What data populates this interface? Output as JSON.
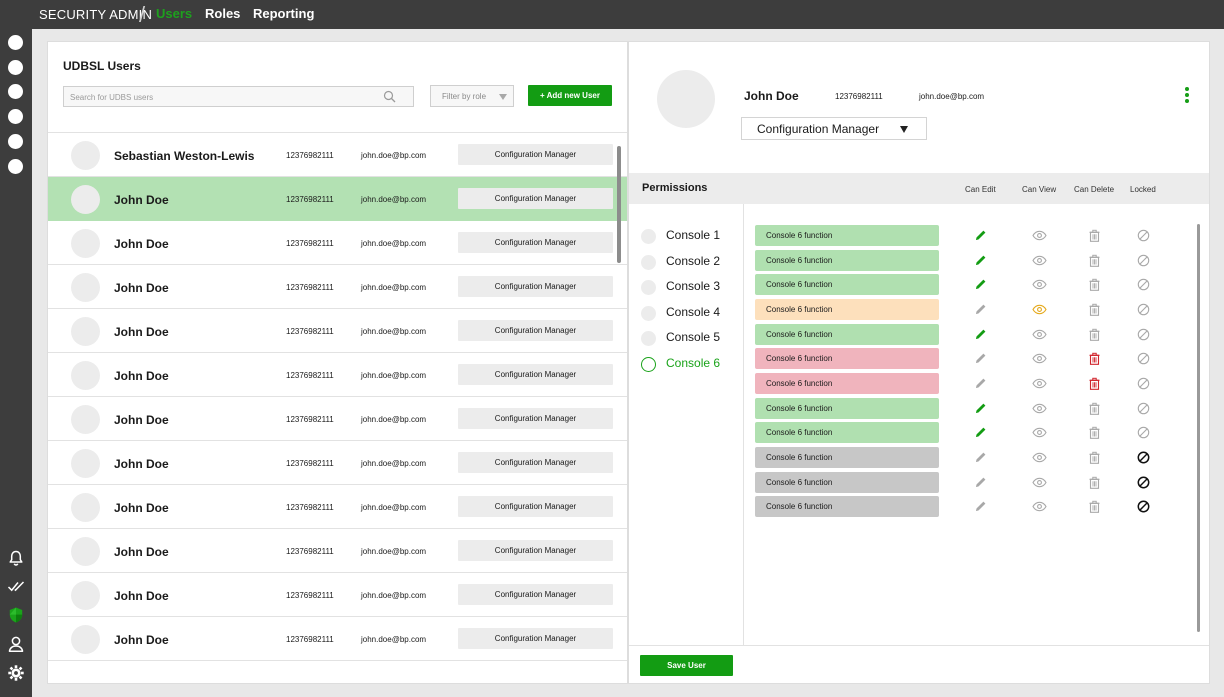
{
  "topbar": {
    "brand": "SECURITY ADMIN",
    "separator": "/",
    "nav": [
      {
        "label": "Users",
        "active": true
      },
      {
        "label": "Roles",
        "active": false
      },
      {
        "label": "Reporting",
        "active": false
      }
    ]
  },
  "sidebar": {
    "bottom_icons": [
      "bell-icon",
      "double-check-icon",
      "shield-icon",
      "user-icon",
      "gear-icon"
    ],
    "active_icon_color": "#1aa31a"
  },
  "users_panel": {
    "title": "UDBSL Users",
    "search_placeholder": "Search for UDBS users",
    "filter_label": "Filter by role",
    "add_button": "+ Add new User",
    "rows": [
      {
        "name": "Sebastian Weston-Lewis",
        "id": "12376982111",
        "email": "john.doe@bp.com",
        "role": "Configuration Manager",
        "selected": false
      },
      {
        "name": "John Doe",
        "id": "12376982111",
        "email": "john.doe@bp.com",
        "role": "Configuration Manager",
        "selected": true
      },
      {
        "name": "John Doe",
        "id": "12376982111",
        "email": "john.doe@bp.com",
        "role": "Configuration Manager",
        "selected": false
      },
      {
        "name": "John Doe",
        "id": "12376982111",
        "email": "john.doe@bp.com",
        "role": "Configuration Manager",
        "selected": false
      },
      {
        "name": "John Doe",
        "id": "12376982111",
        "email": "john.doe@bp.com",
        "role": "Configuration Manager",
        "selected": false
      },
      {
        "name": "John Doe",
        "id": "12376982111",
        "email": "john.doe@bp.com",
        "role": "Configuration Manager",
        "selected": false
      },
      {
        "name": "John Doe",
        "id": "12376982111",
        "email": "john.doe@bp.com",
        "role": "Configuration Manager",
        "selected": false
      },
      {
        "name": "John Doe",
        "id": "12376982111",
        "email": "john.doe@bp.com",
        "role": "Configuration Manager",
        "selected": false
      },
      {
        "name": "John Doe",
        "id": "12376982111",
        "email": "john.doe@bp.com",
        "role": "Configuration Manager",
        "selected": false
      },
      {
        "name": "John Doe",
        "id": "12376982111",
        "email": "john.doe@bp.com",
        "role": "Configuration Manager",
        "selected": false
      },
      {
        "name": "John Doe",
        "id": "12376982111",
        "email": "john.doe@bp.com",
        "role": "Configuration Manager",
        "selected": false
      },
      {
        "name": "John Doe",
        "id": "12376982111",
        "email": "john.doe@bp.com",
        "role": "Configuration Manager",
        "selected": false
      }
    ]
  },
  "detail": {
    "name": "John Doe",
    "id": "12376982111",
    "email": "john.doe@bp.com",
    "role_select": "Configuration Manager",
    "permissions_title": "Permissions",
    "columns": [
      "Can Edit",
      "Can View",
      "Can Delete",
      "Locked"
    ],
    "consoles": [
      {
        "label": "Console 1",
        "active": false
      },
      {
        "label": "Console 2",
        "active": false
      },
      {
        "label": "Console 3",
        "active": false
      },
      {
        "label": "Console 4",
        "active": false
      },
      {
        "label": "Console 5",
        "active": false
      },
      {
        "label": "Console 6",
        "active": true
      }
    ],
    "functions": [
      {
        "label": "Console 6 function",
        "status": "green",
        "edit": true,
        "view": false,
        "delete": false,
        "locked": false
      },
      {
        "label": "Console 6 function",
        "status": "green",
        "edit": true,
        "view": false,
        "delete": false,
        "locked": false
      },
      {
        "label": "Console 6 function",
        "status": "green",
        "edit": true,
        "view": false,
        "delete": false,
        "locked": false
      },
      {
        "label": "Console 6 function",
        "status": "orange",
        "edit": false,
        "view": true,
        "delete": false,
        "locked": false
      },
      {
        "label": "Console 6 function",
        "status": "green",
        "edit": true,
        "view": false,
        "delete": false,
        "locked": false
      },
      {
        "label": "Console 6 function",
        "status": "red",
        "edit": false,
        "view": false,
        "delete": true,
        "locked": false
      },
      {
        "label": "Console 6 function",
        "status": "red",
        "edit": false,
        "view": false,
        "delete": true,
        "locked": false
      },
      {
        "label": "Console 6 function",
        "status": "green",
        "edit": true,
        "view": false,
        "delete": false,
        "locked": false
      },
      {
        "label": "Console 6 function",
        "status": "green",
        "edit": true,
        "view": false,
        "delete": false,
        "locked": false
      },
      {
        "label": "Console 6 function",
        "status": "gray",
        "edit": false,
        "view": false,
        "delete": false,
        "locked": true
      },
      {
        "label": "Console 6 function",
        "status": "gray",
        "edit": false,
        "view": false,
        "delete": false,
        "locked": true
      },
      {
        "label": "Console 6 function",
        "status": "gray",
        "edit": false,
        "view": false,
        "delete": false,
        "locked": true
      }
    ],
    "save_button": "Save User"
  },
  "colors": {
    "accent_green": "#139c13",
    "selected_row": "#b3e1b3",
    "view_active": "#e5a91c",
    "delete_active": "#d0232b",
    "icon_inactive": "#a8a8a8"
  }
}
